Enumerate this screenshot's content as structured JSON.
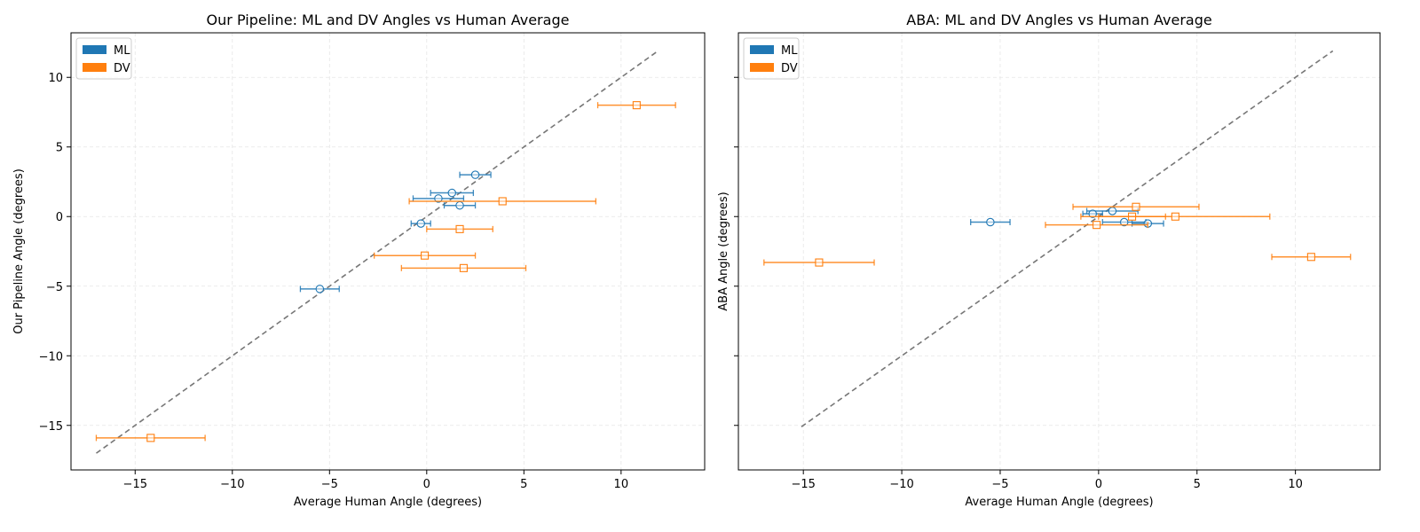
{
  "chart_data": [
    {
      "type": "scatter",
      "title": "Our Pipeline: ML and DV Angles vs Human Average",
      "xlabel": "Average Human Angle (degrees)",
      "ylabel": "Our Pipeline Angle (degrees)",
      "xlim": [
        -18.3,
        14.3
      ],
      "ylim": [
        -18.2,
        13.2
      ],
      "xticks": [
        -15,
        -10,
        -5,
        0,
        5,
        10
      ],
      "yticks": [
        -15,
        -10,
        -5,
        0,
        5,
        10
      ],
      "grid": true,
      "legend_position": "top-left",
      "identity_line": [
        -17,
        11.9
      ],
      "series": [
        {
          "name": "ML",
          "color": "#1f77b4",
          "marker": "circle",
          "points": [
            {
              "x": 2.5,
              "y": 3.0,
              "xerr": 0.8
            },
            {
              "x": 1.3,
              "y": 1.7,
              "xerr": 1.1
            },
            {
              "x": 0.6,
              "y": 1.3,
              "xerr": 1.3
            },
            {
              "x": 1.7,
              "y": 0.8,
              "xerr": 0.8
            },
            {
              "x": -0.3,
              "y": -0.5,
              "xerr": 0.5
            },
            {
              "x": -5.5,
              "y": -5.2,
              "xerr": 1.0
            }
          ]
        },
        {
          "name": "DV",
          "color": "#ff7f0e",
          "marker": "square",
          "points": [
            {
              "x": 10.8,
              "y": 8.0,
              "xerr": 2.0
            },
            {
              "x": 3.9,
              "y": 1.1,
              "xerr": 4.8
            },
            {
              "x": 1.7,
              "y": -0.9,
              "xerr": 1.7
            },
            {
              "x": -0.1,
              "y": -2.8,
              "xerr": 2.6
            },
            {
              "x": 1.9,
              "y": -3.7,
              "xerr": 3.2
            },
            {
              "x": -14.2,
              "y": -15.9,
              "xerr": 2.8
            }
          ]
        }
      ]
    },
    {
      "type": "scatter",
      "title": "ABA: ML and DV Angles vs Human Average",
      "xlabel": "Average Human Angle (degrees)",
      "ylabel": "ABA Angle (degrees)",
      "xlim": [
        -18.3,
        14.3
      ],
      "ylim": [
        -18.2,
        13.2
      ],
      "xticks": [
        -15,
        -10,
        -5,
        0,
        5,
        10
      ],
      "yticks": [
        -15,
        -10,
        -5,
        0,
        5,
        10
      ],
      "grid": true,
      "legend_position": "top-left",
      "identity_line": [
        -15.1,
        11.9
      ],
      "series": [
        {
          "name": "ML",
          "color": "#1f77b4",
          "marker": "circle",
          "points": [
            {
              "x": 0.7,
              "y": 0.4,
              "xerr": 1.3
            },
            {
              "x": -0.3,
              "y": 0.2,
              "xerr": 0.5
            },
            {
              "x": 1.3,
              "y": -0.4,
              "xerr": 1.1
            },
            {
              "x": 2.5,
              "y": -0.5,
              "xerr": 0.8
            },
            {
              "x": -5.5,
              "y": -0.4,
              "xerr": 1.0
            }
          ]
        },
        {
          "name": "DV",
          "color": "#ff7f0e",
          "marker": "square",
          "points": [
            {
              "x": 1.9,
              "y": 0.7,
              "xerr": 3.2
            },
            {
              "x": 1.7,
              "y": 0.0,
              "xerr": 1.7
            },
            {
              "x": 3.9,
              "y": 0.0,
              "xerr": 4.8
            },
            {
              "x": -0.1,
              "y": -0.6,
              "xerr": 2.6
            },
            {
              "x": -14.2,
              "y": -3.3,
              "xerr": 2.8
            },
            {
              "x": 10.8,
              "y": -2.9,
              "xerr": 2.0
            }
          ]
        }
      ]
    }
  ]
}
